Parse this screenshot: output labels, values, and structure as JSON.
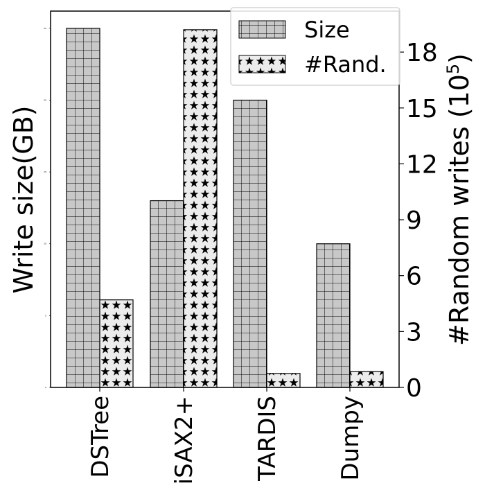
{
  "chart_data": {
    "type": "bar",
    "categories": [
      "DSTree",
      "iSAX2+",
      "TARDIS",
      "Dumpy"
    ],
    "series": [
      {
        "name": "Size",
        "axis": "left",
        "hatch": "grid",
        "values": [
          25,
          13,
          20,
          10
        ]
      },
      {
        "name": "#Rand.",
        "axis": "right",
        "hatch": "stars",
        "values": [
          4.7,
          19.2,
          0.75,
          0.85
        ]
      }
    ],
    "ylabel_left": "Write size(GB)",
    "ylabel_right_base": "#Random writes (10",
    "ylabel_right_exp": "5",
    "ylabel_right_close": ")",
    "ylim_left": [
      0,
      26.2
    ],
    "ylim_right": [
      0,
      20.2
    ],
    "yticks_left": [
      0,
      5,
      10,
      15,
      20,
      25
    ],
    "yticks_right": [
      0,
      3,
      6,
      9,
      12,
      15,
      18
    ],
    "bar_fill": "#c8c8c8",
    "legend_position": "top-right",
    "grid": false
  }
}
